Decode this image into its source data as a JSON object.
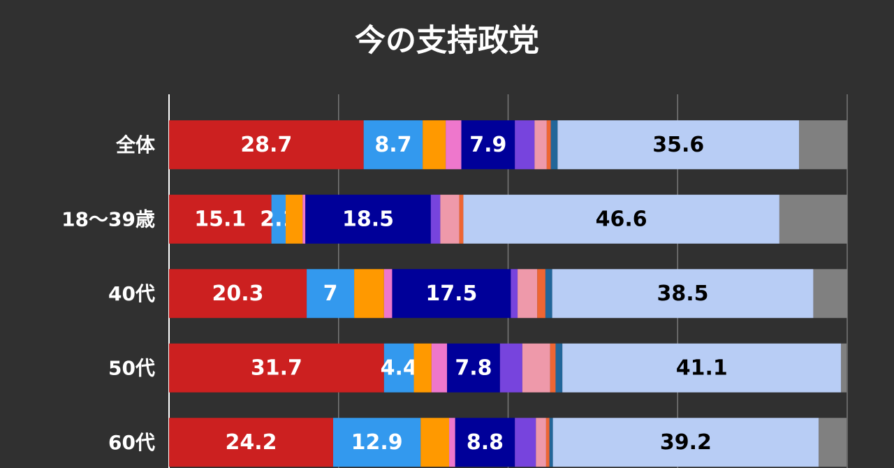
{
  "chart_data": {
    "type": "stacked-bar-horizontal",
    "title": "今の支持政党",
    "categories": [
      "全体",
      "18〜39歳",
      "40代",
      "50代",
      "60代"
    ],
    "xlim": [
      0,
      100
    ],
    "xticks": [
      0,
      25,
      50,
      75,
      100
    ],
    "grid": true,
    "series": [
      {
        "color": "#cc2020",
        "values": [
          28.7,
          15.1,
          20.3,
          31.7,
          24.2
        ],
        "show_labels": true,
        "label_color": "#ffffff"
      },
      {
        "color": "#3399ee",
        "values": [
          8.7,
          2.1,
          7.0,
          4.4,
          12.9
        ],
        "show_labels": true,
        "label_color": "#ffffff"
      },
      {
        "color": "#ff9900",
        "values": [
          3.4,
          2.5,
          4.4,
          2.6,
          4.2
        ]
      },
      {
        "color": "#ee77cc",
        "values": [
          2.3,
          0.4,
          1.2,
          2.3,
          0.9
        ]
      },
      {
        "color": "#000099",
        "values": [
          7.9,
          18.5,
          17.5,
          7.8,
          8.8
        ],
        "show_labels": true,
        "label_color": "#ffffff"
      },
      {
        "color": "#7744dd",
        "values": [
          2.9,
          1.4,
          1.0,
          3.3,
          3.1
        ]
      },
      {
        "color": "#ee99aa",
        "values": [
          1.8,
          2.8,
          2.9,
          4.1,
          1.5
        ]
      },
      {
        "color": "#ee6633",
        "values": [
          0.6,
          0.6,
          1.2,
          0.8,
          0.5
        ]
      },
      {
        "color": "#226699",
        "values": [
          1.0,
          0,
          1.0,
          1.0,
          0.5
        ]
      },
      {
        "color": "#b8cdf5",
        "values": [
          35.6,
          46.6,
          38.5,
          41.1,
          39.2
        ],
        "show_labels": true,
        "label_color": "#000000"
      },
      {
        "color": "#808080",
        "values": [
          7.1,
          10.0,
          5.0,
          0.8,
          4.1
        ]
      }
    ]
  }
}
